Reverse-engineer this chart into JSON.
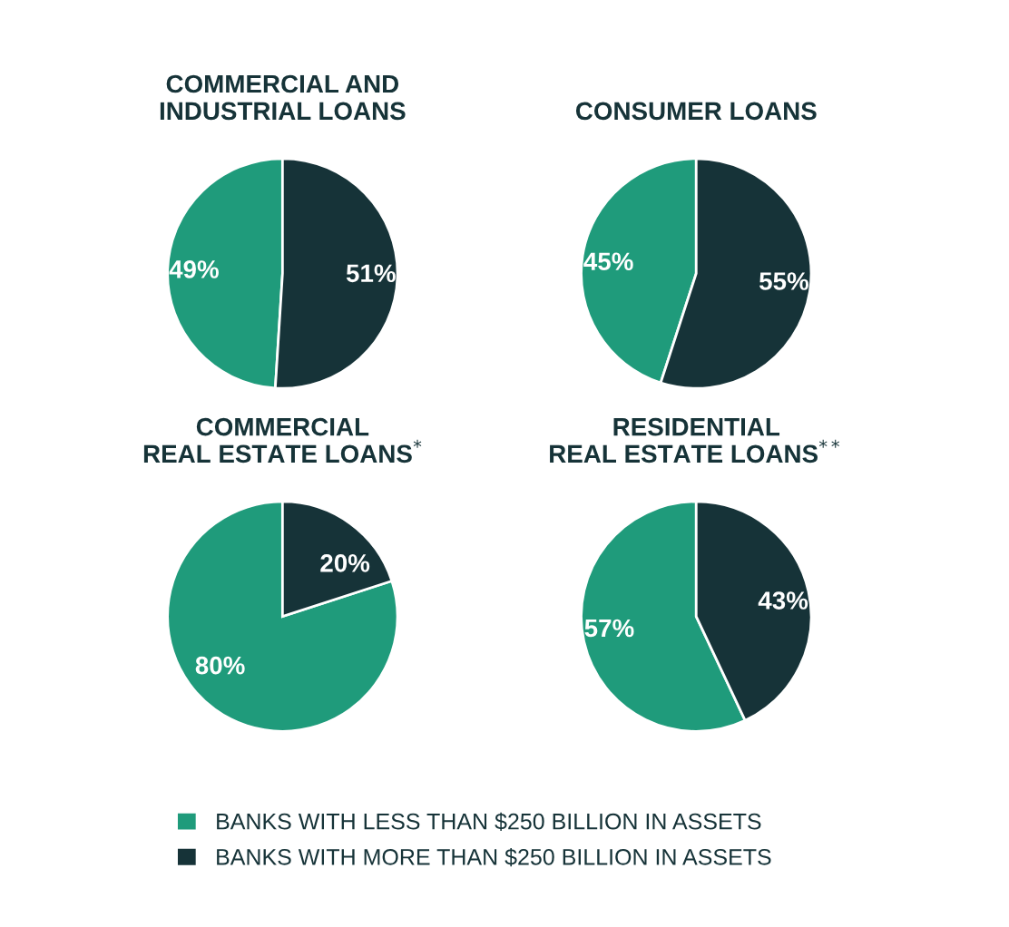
{
  "chart_data": [
    {
      "type": "pie",
      "title": "COMMERCIAL AND\nINDUSTRIAL LOANS",
      "categories": [
        "BANKS WITH LESS THAN $250 BILLION IN ASSETS",
        "BANKS WITH MORE THAN $250 BILLION IN ASSETS"
      ],
      "values": [
        49,
        51
      ],
      "value_labels": [
        "49%",
        "51%"
      ],
      "colors": [
        "#1f9b7b",
        "#163338"
      ],
      "legend": "bottom"
    },
    {
      "type": "pie",
      "title": "CONSUMER LOANS",
      "categories": [
        null,
        null
      ],
      "values": [
        45,
        55
      ],
      "value_labels": [
        "45%",
        "55%"
      ],
      "colors": [
        "#1f9b7b",
        "#163338"
      ]
    },
    {
      "type": "pie",
      "title": "COMMERCIAL\nREAL ESTATE LOANS$^{*}$",
      "categories": [
        null,
        null
      ],
      "values": [
        80,
        20
      ],
      "value_labels": [
        "80%",
        "20%"
      ],
      "colors": [
        "#1f9b7b",
        "#163338"
      ]
    },
    {
      "type": "pie",
      "title": "RESIDENTIAL\nREAL ESTATE LOANS$^{**}$",
      "categories": [
        null,
        null
      ],
      "values": [
        57,
        43
      ],
      "value_labels": [
        "57%",
        "43%"
      ],
      "colors": [
        "#1f9b7b",
        "#163338"
      ]
    }
  ]
}
